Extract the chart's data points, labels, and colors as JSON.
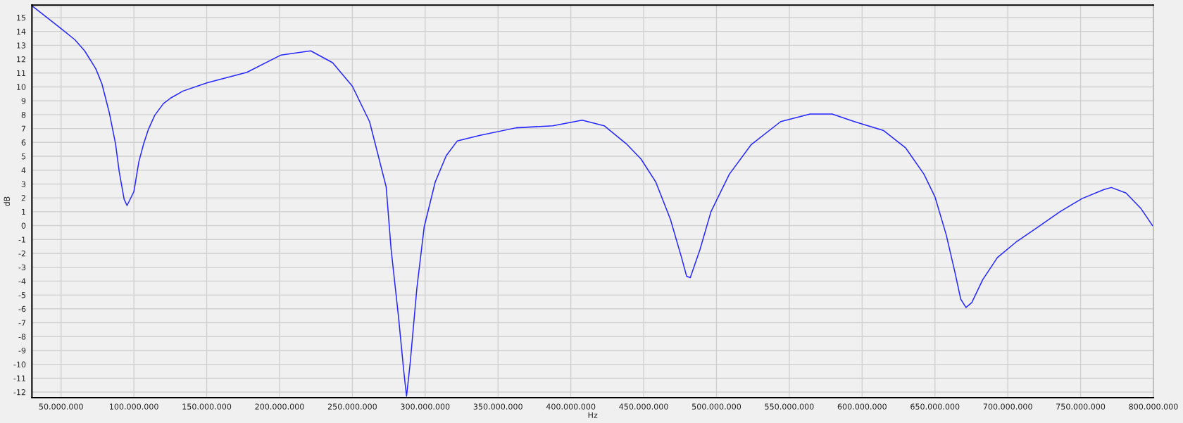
{
  "chart_data": {
    "type": "line",
    "xlabel": "Hz",
    "ylabel": "dB",
    "x": [
      30600000,
      50000000,
      59500000,
      66200000,
      73900000,
      78100000,
      83100000,
      87400000,
      89900000,
      93300000,
      95300000,
      100000000,
      103400000,
      106700000,
      110000000,
      114300000,
      120300000,
      125300000,
      133700000,
      150500000,
      177600000,
      201000000,
      221400000,
      236400000,
      250000000,
      261800000,
      273200000,
      276600000,
      281700000,
      285200000,
      287200000,
      289700000,
      294300000,
      299300000,
      306900000,
      314500000,
      322000000,
      337200000,
      362400000,
      387600000,
      407800000,
      422900000,
      438100000,
      448200000,
      458300000,
      468400000,
      476000000,
      479500000,
      482000000,
      488600000,
      496200000,
      508800000,
      523900000,
      544100000,
      564300000,
      579400000,
      594600000,
      614800000,
      629900000,
      642500000,
      650100000,
      657700000,
      663700000,
      667700000,
      671300000,
      675300000,
      682800000,
      692900000,
      705500000,
      720700000,
      735800000,
      751000000,
      766100000,
      771100000,
      781200000,
      791300000,
      799400000
    ],
    "series": [
      {
        "color": "#2626ff",
        "values": [
          15.8,
          14.2,
          13.4,
          12.6,
          11.3,
          10.2,
          8.15,
          5.9,
          3.9,
          1.9,
          1.45,
          2.45,
          4.6,
          5.9,
          6.95,
          7.95,
          8.8,
          9.2,
          9.7,
          10.3,
          11.05,
          12.3,
          12.6,
          11.75,
          10.05,
          7.5,
          2.8,
          -1.7,
          -6.6,
          -10.4,
          -12.3,
          -9.9,
          -4.5,
          -0.1,
          3.15,
          5.05,
          6.1,
          6.5,
          7.05,
          7.2,
          7.6,
          7.2,
          5.9,
          4.8,
          3.15,
          0.45,
          -2.3,
          -3.65,
          -3.75,
          -1.75,
          1.0,
          3.7,
          5.85,
          7.5,
          8.05,
          8.05,
          7.5,
          6.85,
          5.6,
          3.7,
          2.05,
          -0.65,
          -3.35,
          -5.3,
          -5.9,
          -5.55,
          -3.9,
          -2.3,
          -1.2,
          -0.1,
          1.0,
          1.95,
          2.6,
          2.75,
          2.35,
          1.25,
          0.0
        ]
      }
    ],
    "xlim": [
      30000000,
      800000000
    ],
    "xticks": [
      {
        "value": 50000000,
        "label": "50.000.000"
      },
      {
        "value": 100000000,
        "label": "100.000.000"
      },
      {
        "value": 150000000,
        "label": "150.000.000"
      },
      {
        "value": 200000000,
        "label": "200.000.000"
      },
      {
        "value": 250000000,
        "label": "250.000.000"
      },
      {
        "value": 300000000,
        "label": "300.000.000"
      },
      {
        "value": 350000000,
        "label": "350.000.000"
      },
      {
        "value": 400000000,
        "label": "400.000.000"
      },
      {
        "value": 450000000,
        "label": "450.000.000"
      },
      {
        "value": 500000000,
        "label": "500.000.000"
      },
      {
        "value": 550000000,
        "label": "550.000.000"
      },
      {
        "value": 600000000,
        "label": "600.000.000"
      },
      {
        "value": 650000000,
        "label": "650.000.000"
      },
      {
        "value": 700000000,
        "label": "700.000.000"
      },
      {
        "value": 750000000,
        "label": "750.000.000"
      },
      {
        "value": 800000000,
        "label": "800.000.000"
      }
    ],
    "ylim": [
      -12.4,
      15.9
    ],
    "yticks": [
      -12,
      -11,
      -10,
      -9,
      -8,
      -7,
      -6,
      -5,
      -4,
      -3,
      -2,
      -1,
      0,
      1,
      2,
      3,
      4,
      5,
      6,
      7,
      8,
      9,
      10,
      11,
      12,
      13,
      14,
      15
    ],
    "grid": true,
    "legend": false,
    "marker": "none",
    "line_style": "solid"
  }
}
